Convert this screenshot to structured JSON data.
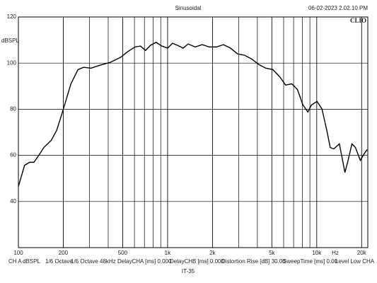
{
  "chart_data": {
    "type": "line",
    "title": "Sinusoidal",
    "timestamp": "06-02-2023 2.02.10 PM",
    "logo": "CLIO",
    "ylabel": "dBSPL",
    "xlabel": "Hz",
    "log_x": true,
    "grid": true,
    "xlim": [
      100,
      22000
    ],
    "ylim": [
      20,
      120
    ],
    "xticks": [
      100,
      200,
      500,
      {
        "value": 1000,
        "label": "1k"
      },
      {
        "value": 2000,
        "label": "2k"
      },
      {
        "value": 5000,
        "label": "5k"
      },
      {
        "value": 10000,
        "label": "10k"
      },
      {
        "value": 20000,
        "label": "20k"
      }
    ],
    "yticks": [
      40,
      60,
      80,
      100,
      120
    ],
    "x": [
      100,
      110,
      119,
      127,
      137,
      148,
      166,
      181,
      200,
      225,
      251,
      274,
      306,
      349,
      412,
      484,
      541,
      604,
      659,
      712,
      767,
      838,
      915,
      1000,
      1079,
      1166,
      1272,
      1373,
      1532,
      1708,
      1904,
      2125,
      2369,
      2642,
      2946,
      3285,
      3663,
      4085,
      4555,
      5080,
      5663,
      6180,
      6810,
      7420,
      8090,
      8730,
      9210,
      10040,
      10830,
      11670,
      12320,
      13000,
      14180,
      15460,
      16140,
      17220,
      18180,
      19600,
      20900,
      21800
    ],
    "series": [
      {
        "name": "CH A",
        "color": "#000000",
        "values": [
          46.5,
          55.7,
          57,
          57,
          60,
          63.4,
          66.5,
          71,
          80,
          91,
          97.2,
          98.2,
          97.8,
          99,
          100.3,
          102.5,
          105,
          107,
          107.4,
          105.5,
          107.7,
          109,
          107.4,
          106.5,
          108.6,
          107.7,
          106.5,
          108.3,
          107,
          108,
          107,
          107,
          108,
          106.5,
          104,
          103.4,
          101.8,
          99.4,
          97.8,
          97.2,
          94,
          90.5,
          91,
          88.6,
          81.8,
          78.8,
          81.8,
          83.4,
          80.2,
          71,
          63.4,
          62.8,
          65,
          52.6,
          57.2,
          65,
          63.4,
          57.8,
          60.9,
          62.5
        ]
      }
    ],
    "footer": [
      "CH A",
      "dBSPL",
      "1/6 Octave",
      "1/6 Octave",
      "48kHz",
      "DelayCHA [ms] 0.000",
      "DelayCHB [ms] 0.000",
      "Distortion Rise [dB] 30.00",
      "SweepTime [ms] 0.00",
      "Level Low CHA"
    ],
    "caption": "IT-35"
  }
}
